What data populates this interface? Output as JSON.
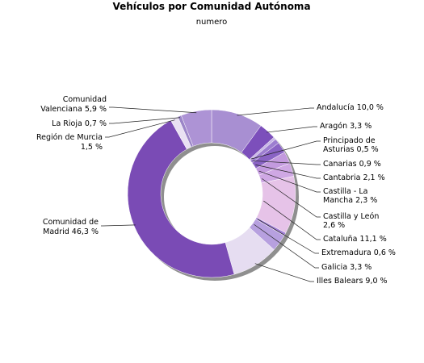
{
  "chart_data": {
    "type": "pie",
    "title": "Vehículos por Comunidad Autónoma",
    "subtitle": "numero",
    "slices": [
      {
        "name": "Andalucía",
        "value": 10.0,
        "label": "Andalucía 10,0 %",
        "color": "#a88fd2"
      },
      {
        "name": "Aragón",
        "value": 3.3,
        "label": "Aragón 3,3 %",
        "color": "#7c4fbb"
      },
      {
        "name": "Principado de Asturias",
        "value": 0.5,
        "label": "Principado de Asturias 0,5 %",
        "color": "#c8b6e6"
      },
      {
        "name": "Canarias",
        "value": 0.9,
        "label": "Canarias 0,9 %",
        "color": "#9d7ed0"
      },
      {
        "name": "Cantabria",
        "value": 2.1,
        "label": "Cantabria 2,1 %",
        "color": "#8a63c4"
      },
      {
        "name": "Castilla - La Mancha",
        "value": 2.3,
        "label": "Castilla - La Mancha 2,3 %",
        "color": "#c39ade"
      },
      {
        "name": "Castilla y León",
        "value": 2.6,
        "label": "Castilla y León 2,6 %",
        "color": "#cfa8e4"
      },
      {
        "name": "Cataluña",
        "value": 11.1,
        "label": "Cataluña 11,1 %",
        "color": "#e6c3e8"
      },
      {
        "name": "Extremadura",
        "value": 0.6,
        "label": "Extremadura 0,6 %",
        "color": "#a07fd4"
      },
      {
        "name": "Galicia",
        "value": 3.3,
        "label": "Galicia 3,3 %",
        "color": "#b7a0df"
      },
      {
        "name": "Illes Balears",
        "value": 9.0,
        "label": "Illes Balears 9,0 %",
        "color": "#e6ddf1"
      },
      {
        "name": "Comunidad de Madrid",
        "value": 46.3,
        "label": "Comunidad de Madrid 46,3 %",
        "color": "#7a4bb5"
      },
      {
        "name": "Región de Murcia",
        "value": 1.5,
        "label": "Región de Murcia 1,5 %",
        "color": "#e9e1f3"
      },
      {
        "name": "La Rioja",
        "value": 0.7,
        "label": "La Rioja 0,7 %",
        "color": "#9c86c8"
      },
      {
        "name": "Comunidad Valenciana",
        "value": 5.9,
        "label": "Comunidad Valenciana 5,9 %",
        "color": "#ad93d5"
      }
    ],
    "legend": "none",
    "donut": true
  },
  "labels": {
    "andalucia": [
      "Andalucía 10,0 %"
    ],
    "aragon": [
      "Aragón 3,3 %"
    ],
    "asturias": [
      "Principado de",
      "Asturias 0,5 %"
    ],
    "canarias": [
      "Canarias 0,9 %"
    ],
    "cantabria": [
      "Cantabria 2,1 %"
    ],
    "clm": [
      "Castilla - La",
      "Mancha 2,3 %"
    ],
    "cyl": [
      "Castilla y León",
      "2,6 %"
    ],
    "cataluna": [
      "Cataluña 11,1 %"
    ],
    "extremadura": [
      "Extremadura 0,6 %"
    ],
    "galicia": [
      "Galicia 3,3 %"
    ],
    "baleares": [
      "Illes Balears 9,0 %"
    ],
    "madrid": [
      "Comunidad de",
      "Madrid 46,3 %"
    ],
    "murcia": [
      "Región de Murcia",
      "1,5 %"
    ],
    "rioja": [
      "La Rioja 0,7 %"
    ],
    "valenciana": [
      "Comunidad",
      "Valenciana 5,9 %"
    ]
  }
}
